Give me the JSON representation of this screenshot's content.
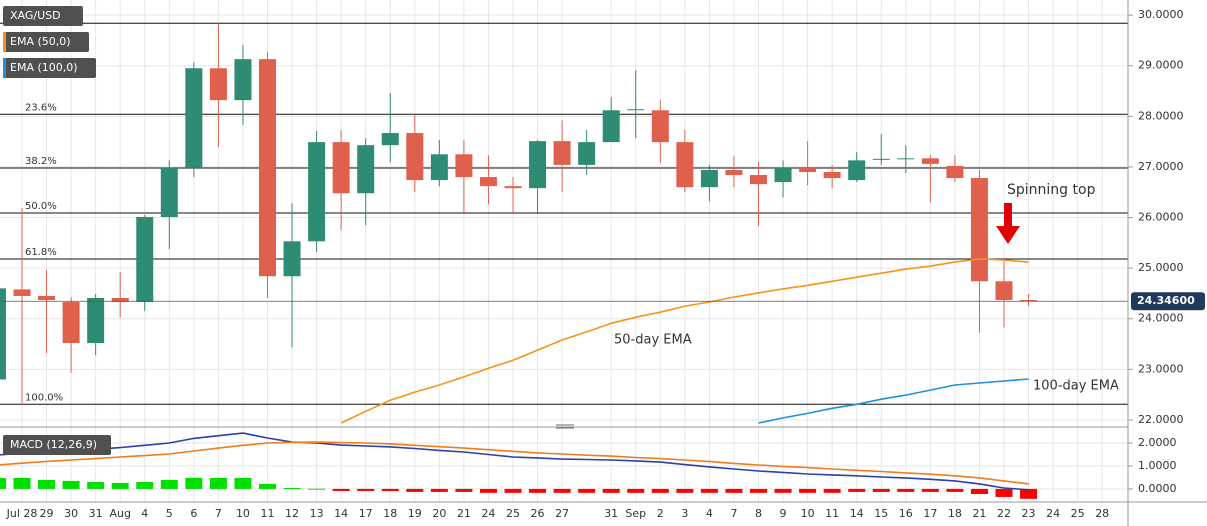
{
  "chart_data": [
    {
      "type": "candlestick",
      "title": "XAG/USD",
      "categories": [
        null,
        "Jul 28",
        "29",
        "30",
        "31",
        "Aug",
        "4",
        "5",
        "6",
        "7",
        "10",
        "11",
        "12",
        "13",
        "14",
        "17",
        "18",
        "19",
        "20",
        "21",
        "24",
        "25",
        "26",
        "27",
        null,
        "31",
        "Sep",
        "2",
        "3",
        "4",
        "7",
        "8",
        "9",
        "10",
        "11",
        "14",
        "15",
        "16",
        "17",
        "18",
        "21",
        "22",
        "23",
        "24",
        "25",
        "28"
      ],
      "open": [
        22.8,
        24.58,
        24.45,
        24.33,
        23.52,
        24.41,
        24.33,
        26.01,
        26.98,
        28.95,
        28.32,
        29.13,
        24.84,
        25.53,
        27.49,
        26.48,
        27.43,
        27.67,
        26.74,
        27.25,
        26.8,
        26.62,
        26.58,
        27.51,
        27.04,
        27.49,
        28.12,
        28.12,
        27.49,
        26.6,
        26.94,
        26.84,
        26.7,
        26.98,
        26.9,
        26.74,
        27.14,
        27.15,
        27.17,
        27.02,
        26.78,
        24.74,
        24.37,
        null,
        null,
        null
      ],
      "high": [
        24.6,
        26.19,
        24.96,
        24.43,
        24.49,
        24.92,
        26.05,
        27.13,
        29.07,
        29.84,
        29.41,
        29.27,
        26.28,
        27.71,
        27.73,
        27.57,
        28.46,
        28.02,
        27.53,
        27.53,
        27.23,
        26.8,
        27.53,
        27.92,
        27.73,
        28.38,
        28.91,
        28.32,
        27.73,
        27.04,
        27.21,
        27.09,
        27.13,
        27.51,
        27.04,
        27.29,
        27.65,
        27.43,
        27.23,
        27.23,
        26.94,
        25.2,
        24.49,
        null,
        null,
        null
      ],
      "low": [
        22.8,
        22.29,
        23.32,
        22.93,
        23.28,
        24.03,
        24.15,
        25.38,
        26.8,
        27.39,
        27.83,
        24.41,
        23.44,
        25.32,
        25.75,
        25.85,
        27.09,
        26.5,
        26.62,
        26.09,
        26.26,
        26.09,
        26.09,
        26.5,
        26.84,
        27.49,
        27.57,
        27.08,
        26.5,
        26.32,
        26.6,
        25.83,
        26.4,
        26.64,
        26.58,
        26.7,
        27.04,
        26.88,
        26.3,
        26.7,
        23.72,
        23.83,
        24.25,
        null,
        null,
        null
      ],
      "close": [
        24.6,
        24.45,
        24.37,
        23.52,
        24.41,
        24.33,
        26.01,
        26.98,
        28.95,
        28.32,
        29.13,
        24.84,
        25.53,
        27.49,
        26.48,
        27.43,
        27.67,
        26.74,
        27.25,
        26.8,
        26.62,
        26.58,
        27.51,
        27.04,
        27.49,
        28.12,
        28.14,
        27.49,
        26.6,
        26.94,
        26.84,
        26.66,
        26.98,
        26.9,
        26.78,
        27.13,
        27.16,
        27.17,
        27.06,
        26.78,
        24.74,
        24.37,
        24.346,
        null,
        null,
        null
      ],
      "up_color": "#2e8b74",
      "down_color": "#e0604e",
      "lines": [
        {
          "name": "EMA (50,0)",
          "color": "#f7931a",
          "values": [
            null,
            null,
            null,
            null,
            null,
            null,
            null,
            null,
            null,
            null,
            null,
            null,
            null,
            null,
            21.94,
            22.17,
            22.39,
            22.55,
            22.69,
            22.85,
            23.02,
            23.18,
            23.38,
            23.58,
            23.74,
            23.91,
            24.03,
            24.13,
            24.25,
            24.33,
            24.43,
            24.51,
            24.59,
            24.66,
            24.74,
            24.82,
            24.9,
            24.98,
            25.04,
            25.12,
            25.18,
            25.16,
            25.12,
            null,
            null,
            null
          ]
        },
        {
          "name": "EMA (100,0)",
          "color": "#1e90dd",
          "values": [
            null,
            null,
            null,
            null,
            null,
            null,
            null,
            null,
            null,
            null,
            null,
            null,
            null,
            null,
            null,
            null,
            null,
            null,
            null,
            null,
            null,
            null,
            null,
            null,
            null,
            null,
            null,
            null,
            null,
            null,
            null,
            21.94,
            22.04,
            22.13,
            22.23,
            22.31,
            22.41,
            22.49,
            22.59,
            22.69,
            22.73,
            22.77,
            22.81,
            null,
            null,
            null
          ]
        }
      ],
      "fib_levels": [
        {
          "value": 29.84,
          "label": null
        },
        {
          "value": 28.04,
          "label": "23.6%"
        },
        {
          "value": 26.98,
          "label": "38.2%"
        },
        {
          "value": 26.09,
          "label": "50.0%"
        },
        {
          "value": 25.18,
          "label": "61.8%"
        },
        {
          "value": 22.31,
          "label": "100.0%"
        }
      ],
      "last_price": {
        "value": 24.346,
        "label": "24.34600"
      },
      "annotations": [
        {
          "text": "Spinning top",
          "color": "#e00000"
        },
        {
          "text": "50-day EMA",
          "color": "#f7931a"
        },
        {
          "text": "100-day EMA",
          "color": "#1e90dd"
        }
      ],
      "ylim": [
        21.9,
        30.2
      ],
      "yticks": [
        {
          "value": 22,
          "label": "22.0000"
        },
        {
          "value": 23,
          "label": "23.0000"
        },
        {
          "value": 24,
          "label": "24.0000"
        },
        {
          "value": 25,
          "label": "25.0000"
        },
        {
          "value": 26,
          "label": "26.0000"
        },
        {
          "value": 27,
          "label": "27.0000"
        },
        {
          "value": 28,
          "label": "28.0000"
        },
        {
          "value": 29,
          "label": "29.0000"
        },
        {
          "value": 30,
          "label": "30.0000"
        }
      ],
      "grid": true
    },
    {
      "type": "macd",
      "title": "MACD (12,26,9)",
      "histogram": [
        0.48,
        0.48,
        0.39,
        0.35,
        0.3,
        0.26,
        0.3,
        0.39,
        0.48,
        0.48,
        0.48,
        0.22,
        0.04,
        0.01,
        -0.09,
        -0.09,
        -0.09,
        -0.13,
        -0.13,
        -0.13,
        -0.17,
        -0.17,
        -0.17,
        -0.17,
        -0.17,
        -0.17,
        -0.17,
        -0.17,
        -0.17,
        -0.17,
        -0.17,
        -0.17,
        -0.17,
        -0.17,
        -0.17,
        -0.13,
        -0.13,
        -0.13,
        -0.13,
        -0.13,
        -0.22,
        -0.35,
        -0.43,
        null,
        null,
        null
      ],
      "up_color": "#00e000",
      "down_color": "#ff0000",
      "macd": {
        "color": "#2a3fb0",
        "values": [
          1.48,
          1.55,
          1.6,
          1.65,
          1.72,
          1.8,
          1.9,
          2.0,
          2.2,
          2.32,
          2.43,
          2.22,
          2.04,
          2.0,
          1.91,
          1.87,
          1.83,
          1.76,
          1.68,
          1.61,
          1.5,
          1.39,
          1.35,
          1.3,
          1.28,
          1.26,
          1.22,
          1.17,
          1.06,
          0.96,
          0.87,
          0.78,
          0.72,
          0.65,
          0.61,
          0.57,
          0.52,
          0.48,
          0.42,
          0.35,
          0.22,
          0.04,
          -0.04,
          null,
          null,
          null
        ]
      },
      "signal": {
        "color": "#f07c1a",
        "values": [
          1.04,
          1.12,
          1.2,
          1.26,
          1.32,
          1.39,
          1.45,
          1.52,
          1.65,
          1.78,
          1.9,
          2.0,
          2.03,
          2.04,
          2.02,
          2.0,
          1.96,
          1.9,
          1.84,
          1.78,
          1.71,
          1.64,
          1.57,
          1.52,
          1.47,
          1.43,
          1.37,
          1.32,
          1.26,
          1.19,
          1.11,
          1.04,
          0.98,
          0.93,
          0.87,
          0.81,
          0.76,
          0.7,
          0.64,
          0.57,
          0.48,
          0.35,
          0.22,
          null,
          null,
          null
        ]
      },
      "ylim": [
        -0.57,
        2.48
      ],
      "yticks": [
        {
          "value": 0,
          "label": "0.0000"
        },
        {
          "value": 1,
          "label": "1.0000"
        },
        {
          "value": 2,
          "label": "2.0000"
        }
      ]
    }
  ]
}
